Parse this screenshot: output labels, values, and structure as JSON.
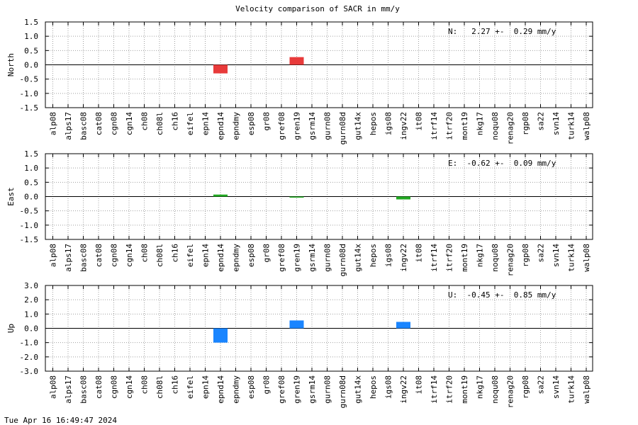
{
  "title": "Velocity comparison of SACR in mm/y",
  "timestamp": "Tue Apr 16 16:49:47 2024",
  "colors": {
    "north": "#e83a3a",
    "east": "#22aa22",
    "up": "#1a85ff"
  },
  "chart_data": [
    {
      "type": "bar",
      "ylabel": "North",
      "annotation": "N:   2.27 +-  0.29 mm/y",
      "ylim": [
        -1.5,
        1.5
      ],
      "yticks": [
        "1.5",
        "1.0",
        "0.5",
        "0.0",
        "-0.5",
        "-1.0",
        "-1.5"
      ],
      "grid": true,
      "categories": [
        "alp08",
        "alps17",
        "basc08",
        "cat08",
        "cgn08",
        "cgn14",
        "ch08",
        "ch08l",
        "ch16",
        "eifel",
        "epn14",
        "epnd14",
        "epndmy",
        "esp08",
        "gr08",
        "gref08",
        "gren19",
        "gsrm14",
        "gurn08",
        "gurn08d",
        "gut14x",
        "hepos",
        "igs08",
        "ingv22",
        "it08",
        "itrf14",
        "itrf20",
        "mont19",
        "nkg17",
        "noqu08",
        "renag20",
        "rgp08",
        "sa22",
        "svn14",
        "turk14",
        "walp08"
      ],
      "values": [
        null,
        null,
        null,
        null,
        null,
        null,
        null,
        null,
        null,
        null,
        null,
        -0.3,
        null,
        null,
        null,
        null,
        0.27,
        null,
        null,
        null,
        null,
        null,
        null,
        null,
        null,
        null,
        null,
        null,
        null,
        null,
        null,
        null,
        null,
        null,
        null,
        null
      ]
    },
    {
      "type": "bar",
      "ylabel": "East",
      "annotation": "E:  -0.62 +-  0.09 mm/y",
      "ylim": [
        -1.5,
        1.5
      ],
      "yticks": [
        "1.5",
        "1.0",
        "0.5",
        "0.0",
        "-0.5",
        "-1.0",
        "-1.5"
      ],
      "grid": true,
      "categories": [
        "alp08",
        "alps17",
        "basc08",
        "cat08",
        "cgn08",
        "cgn14",
        "ch08",
        "ch08l",
        "ch16",
        "eifel",
        "epn14",
        "epnd14",
        "epndmy",
        "esp08",
        "gr08",
        "gref08",
        "gren19",
        "gsrm14",
        "gurn08",
        "gurn08d",
        "gut14x",
        "hepos",
        "igs08",
        "ingv22",
        "it08",
        "itrf14",
        "itrf20",
        "mont19",
        "nkg17",
        "noqu08",
        "renag20",
        "rgp08",
        "sa22",
        "svn14",
        "turk14",
        "walp08"
      ],
      "values": [
        null,
        null,
        null,
        null,
        null,
        null,
        null,
        null,
        null,
        null,
        null,
        0.07,
        null,
        null,
        null,
        null,
        -0.03,
        null,
        null,
        null,
        null,
        null,
        null,
        -0.1,
        null,
        null,
        null,
        null,
        null,
        null,
        null,
        null,
        null,
        null,
        null,
        null
      ]
    },
    {
      "type": "bar",
      "ylabel": "Up",
      "annotation": "U:  -0.45 +-  0.85 mm/y",
      "ylim": [
        -3.0,
        3.0
      ],
      "yticks": [
        "3.0",
        "2.0",
        "1.0",
        "0.0",
        "-1.0",
        "-2.0",
        "-3.0"
      ],
      "grid": true,
      "categories": [
        "alp08",
        "alps17",
        "basc08",
        "cat08",
        "cgn08",
        "cgn14",
        "ch08",
        "ch08l",
        "ch16",
        "eifel",
        "epn14",
        "epnd14",
        "epndmy",
        "esp08",
        "gr08",
        "gref08",
        "gren19",
        "gsrm14",
        "gurn08",
        "gurn08d",
        "gut14x",
        "hepos",
        "igs08",
        "ingv22",
        "it08",
        "itrf14",
        "itrf20",
        "mont19",
        "nkg17",
        "noqu08",
        "renag20",
        "rgp08",
        "sa22",
        "svn14",
        "turk14",
        "walp08"
      ],
      "values": [
        null,
        null,
        null,
        null,
        null,
        null,
        null,
        null,
        null,
        null,
        null,
        -1.0,
        null,
        null,
        null,
        null,
        0.55,
        null,
        null,
        null,
        null,
        null,
        null,
        0.45,
        null,
        null,
        null,
        null,
        null,
        null,
        null,
        null,
        null,
        null,
        null,
        null
      ]
    }
  ]
}
